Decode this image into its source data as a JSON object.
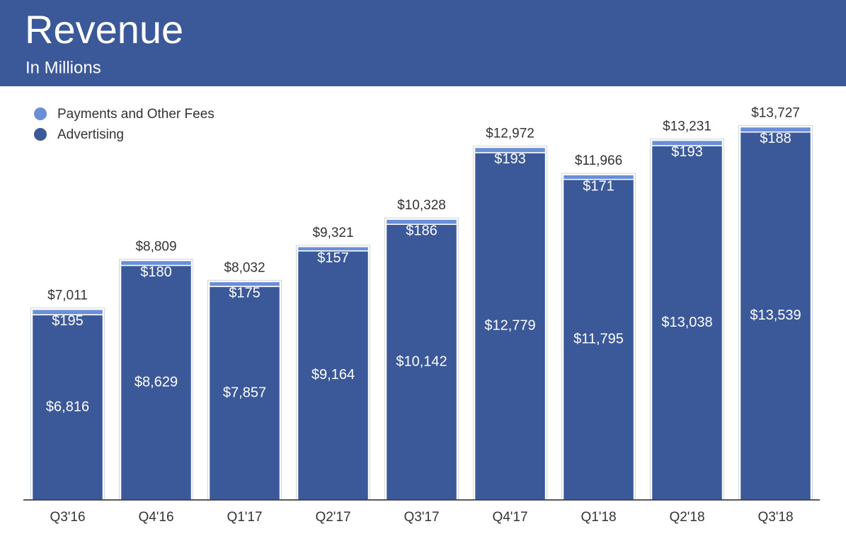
{
  "chart_data": {
    "type": "stacked_bar",
    "title": "Revenue",
    "subtitle": "In Millions",
    "categories": [
      "Q3'16",
      "Q4'16",
      "Q1'17",
      "Q2'17",
      "Q3'17",
      "Q4'17",
      "Q1'18",
      "Q2'18",
      "Q3'18"
    ],
    "series": [
      {
        "name": "Payments and Other Fees",
        "color": "#6a8fd8",
        "values": [
          195,
          180,
          175,
          157,
          186,
          193,
          171,
          193,
          188
        ],
        "value_labels": [
          "$195",
          "$180",
          "$175",
          "$157",
          "$186",
          "$193",
          "$171",
          "$193",
          "$188"
        ]
      },
      {
        "name": "Advertising",
        "color": "#3b5998",
        "values": [
          6816,
          8629,
          7857,
          9164,
          10142,
          12779,
          11795,
          13038,
          13539
        ],
        "value_labels": [
          "$6,816",
          "$8,629",
          "$7,857",
          "$9,164",
          "$10,142",
          "$12,779",
          "$11,795",
          "$13,038",
          "$13,539"
        ]
      }
    ],
    "totals": [
      7011,
      8809,
      8032,
      9321,
      10328,
      12972,
      11966,
      13231,
      13727
    ],
    "total_labels": [
      "$7,011",
      "$8,809",
      "$8,032",
      "$9,321",
      "$10,328",
      "$12,972",
      "$11,966",
      "$13,231",
      "$13,727"
    ],
    "ylim": [
      0,
      14000
    ]
  }
}
